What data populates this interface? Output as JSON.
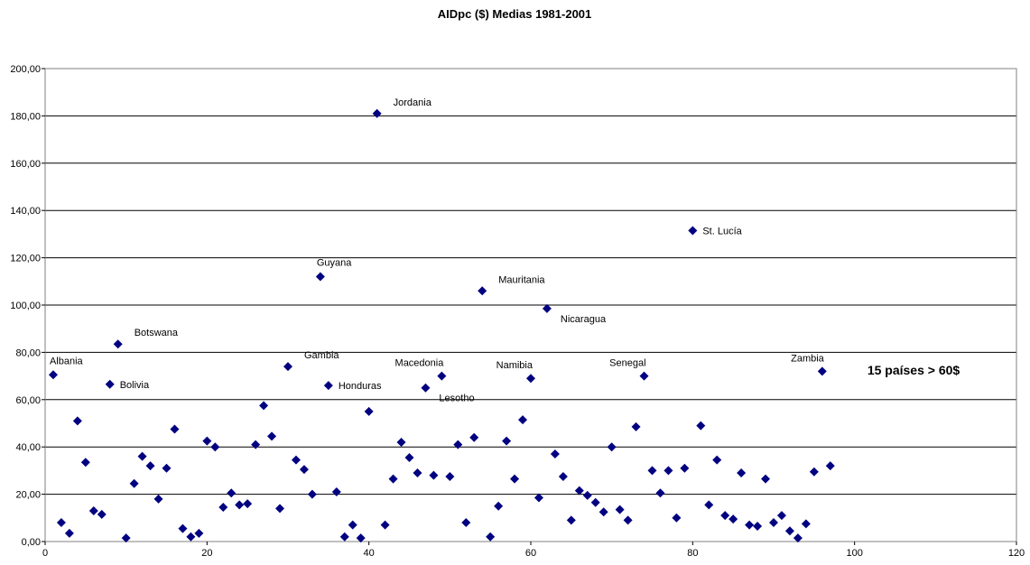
{
  "chart_data": {
    "type": "scatter",
    "title": "AIDpc ($) Medias 1981-2001",
    "xlabel": "",
    "ylabel": "",
    "xlim": [
      0,
      120
    ],
    "ylim": [
      0,
      200
    ],
    "x_ticks": [
      "0",
      "20",
      "40",
      "60",
      "80",
      "100",
      "120"
    ],
    "y_ticks": [
      "0,00",
      "20,00",
      "40,00",
      "60,00",
      "80,00",
      "100,00",
      "120,00",
      "140,00",
      "160,00",
      "180,00",
      "200,00"
    ],
    "grid": "horizontal",
    "marker_color": "#000080",
    "marker": "diamond",
    "note": "15 países > 60$",
    "points": [
      {
        "x": 1,
        "y": 70.5
      },
      {
        "x": 2,
        "y": 8
      },
      {
        "x": 3,
        "y": 3.5
      },
      {
        "x": 4,
        "y": 51
      },
      {
        "x": 5,
        "y": 33.5
      },
      {
        "x": 6,
        "y": 13
      },
      {
        "x": 7,
        "y": 11.5
      },
      {
        "x": 8,
        "y": 66.5
      },
      {
        "x": 9,
        "y": 83.5
      },
      {
        "x": 10,
        "y": 1.5
      },
      {
        "x": 11,
        "y": 24.5
      },
      {
        "x": 12,
        "y": 36
      },
      {
        "x": 13,
        "y": 32
      },
      {
        "x": 14,
        "y": 18
      },
      {
        "x": 15,
        "y": 31
      },
      {
        "x": 16,
        "y": 47.5
      },
      {
        "x": 17,
        "y": 5.5
      },
      {
        "x": 18,
        "y": 2
      },
      {
        "x": 19,
        "y": 3.5
      },
      {
        "x": 20,
        "y": 42.5
      },
      {
        "x": 21,
        "y": 40
      },
      {
        "x": 22,
        "y": 14.5
      },
      {
        "x": 23,
        "y": 20.5
      },
      {
        "x": 24,
        "y": 15.5
      },
      {
        "x": 25,
        "y": 16
      },
      {
        "x": 26,
        "y": 41
      },
      {
        "x": 27,
        "y": 57.5
      },
      {
        "x": 28,
        "y": 44.5
      },
      {
        "x": 29,
        "y": 14
      },
      {
        "x": 30,
        "y": 74
      },
      {
        "x": 31,
        "y": 34.5
      },
      {
        "x": 32,
        "y": 30.5
      },
      {
        "x": 33,
        "y": 20
      },
      {
        "x": 34,
        "y": 112
      },
      {
        "x": 35,
        "y": 66
      },
      {
        "x": 36,
        "y": 21
      },
      {
        "x": 37,
        "y": 2
      },
      {
        "x": 38,
        "y": 7
      },
      {
        "x": 39,
        "y": 1.5
      },
      {
        "x": 40,
        "y": 55
      },
      {
        "x": 41,
        "y": 181
      },
      {
        "x": 42,
        "y": 7
      },
      {
        "x": 43,
        "y": 26.5
      },
      {
        "x": 44,
        "y": 42
      },
      {
        "x": 45,
        "y": 35.5
      },
      {
        "x": 46,
        "y": 29
      },
      {
        "x": 47,
        "y": 65
      },
      {
        "x": 48,
        "y": 28
      },
      {
        "x": 49,
        "y": 70
      },
      {
        "x": 50,
        "y": 27.5
      },
      {
        "x": 51,
        "y": 41
      },
      {
        "x": 52,
        "y": 8
      },
      {
        "x": 53,
        "y": 44
      },
      {
        "x": 54,
        "y": 106
      },
      {
        "x": 55,
        "y": 2
      },
      {
        "x": 56,
        "y": 15
      },
      {
        "x": 57,
        "y": 42.5
      },
      {
        "x": 58,
        "y": 26.5
      },
      {
        "x": 59,
        "y": 51.5
      },
      {
        "x": 60,
        "y": 69
      },
      {
        "x": 61,
        "y": 18.5
      },
      {
        "x": 62,
        "y": 98.5
      },
      {
        "x": 63,
        "y": 37
      },
      {
        "x": 64,
        "y": 27.5
      },
      {
        "x": 65,
        "y": 9
      },
      {
        "x": 66,
        "y": 21.5
      },
      {
        "x": 67,
        "y": 19.5
      },
      {
        "x": 68,
        "y": 16.5
      },
      {
        "x": 69,
        "y": 12.5
      },
      {
        "x": 70,
        "y": 40
      },
      {
        "x": 71,
        "y": 13.5
      },
      {
        "x": 72,
        "y": 9
      },
      {
        "x": 73,
        "y": 48.5
      },
      {
        "x": 74,
        "y": 70
      },
      {
        "x": 75,
        "y": 30
      },
      {
        "x": 76,
        "y": 20.5
      },
      {
        "x": 77,
        "y": 30
      },
      {
        "x": 78,
        "y": 10
      },
      {
        "x": 79,
        "y": 31
      },
      {
        "x": 80,
        "y": 131.5
      },
      {
        "x": 81,
        "y": 49
      },
      {
        "x": 82,
        "y": 15.5
      },
      {
        "x": 83,
        "y": 34.5
      },
      {
        "x": 84,
        "y": 11
      },
      {
        "x": 85,
        "y": 9.5
      },
      {
        "x": 86,
        "y": 29
      },
      {
        "x": 87,
        "y": 7
      },
      {
        "x": 88,
        "y": 6.5
      },
      {
        "x": 89,
        "y": 26.5
      },
      {
        "x": 90,
        "y": 8
      },
      {
        "x": 91,
        "y": 11
      },
      {
        "x": 92,
        "y": 4.5
      },
      {
        "x": 93,
        "y": 1.5
      },
      {
        "x": 94,
        "y": 7.5
      },
      {
        "x": 95,
        "y": 29.5
      },
      {
        "x": 96,
        "y": 72
      },
      {
        "x": 97,
        "y": 32
      }
    ],
    "annotations": [
      {
        "text": "Albania",
        "x": 1,
        "y": 70.5,
        "pos": "above"
      },
      {
        "text": "Bolivia",
        "x": 8,
        "y": 66.5,
        "pos": "right"
      },
      {
        "text": "Botswana",
        "x": 9,
        "y": 83.5,
        "pos": "upper-right"
      },
      {
        "text": "Gambia",
        "x": 30,
        "y": 74,
        "pos": "upper-right"
      },
      {
        "text": "Guyana",
        "x": 34,
        "y": 112,
        "pos": "above"
      },
      {
        "text": "Honduras",
        "x": 35,
        "y": 66,
        "pos": "right"
      },
      {
        "text": "Jordania",
        "x": 41,
        "y": 181,
        "pos": "upper-right"
      },
      {
        "text": "Macedonia",
        "x": 49,
        "y": 70,
        "pos": "upper-left"
      },
      {
        "text": "Lesotho",
        "x": 47,
        "y": 65,
        "pos": "lower-right"
      },
      {
        "text": "Mauritania",
        "x": 54,
        "y": 106,
        "pos": "upper-right"
      },
      {
        "text": "Nicaragua",
        "x": 62,
        "y": 98.5,
        "pos": "lower-right"
      },
      {
        "text": "Namibia",
        "x": 60,
        "y": 69,
        "pos": "upper-left"
      },
      {
        "text": "Senegal",
        "x": 74,
        "y": 70,
        "pos": "upper-left"
      },
      {
        "text": "St. Lucía",
        "x": 80,
        "y": 131.5,
        "pos": "right"
      },
      {
        "text": "Zambia",
        "x": 96,
        "y": 72,
        "pos": "upper-left"
      }
    ]
  }
}
